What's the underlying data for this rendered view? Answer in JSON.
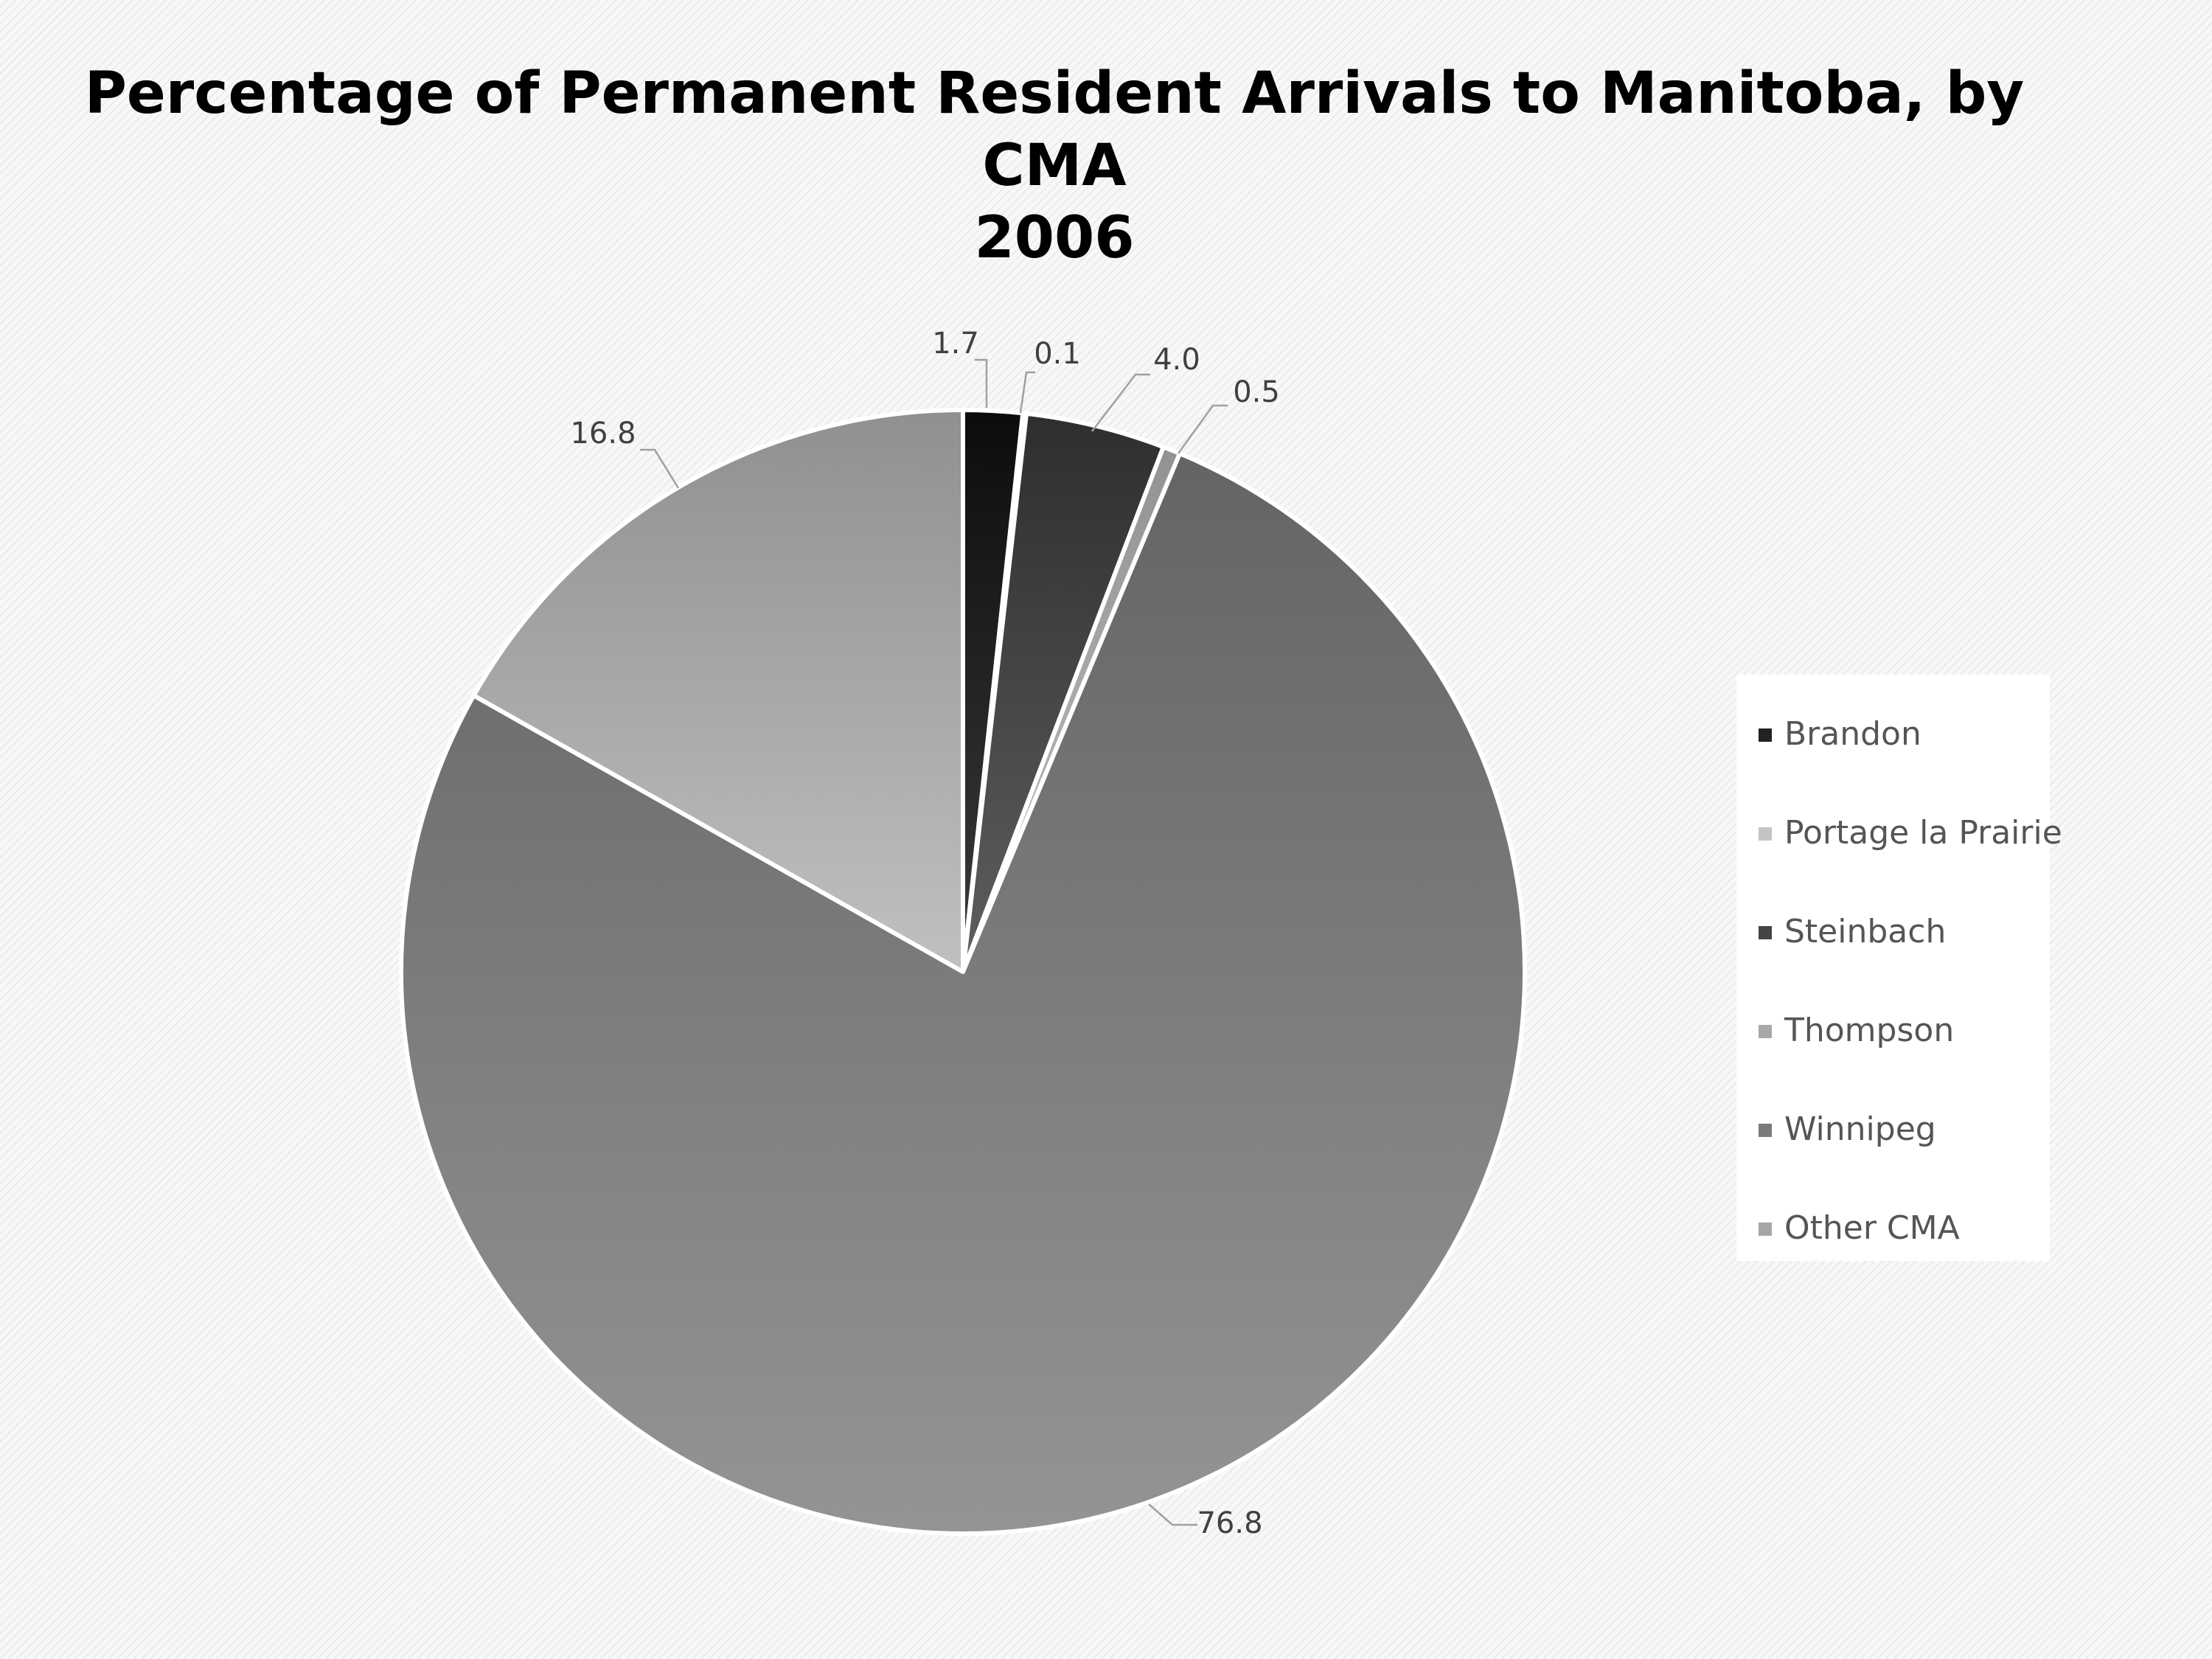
{
  "chart_data": {
    "type": "pie",
    "title": "Percentage of Permanent Resident Arrivals to Manitoba, by CMA 2006",
    "title_lines": [
      "Percentage of Permanent Resident Arrivals to Manitoba, by",
      "CMA",
      "2006"
    ],
    "categories": [
      "Brandon",
      "Portage la Prairie",
      "Steinbach",
      "Thompson",
      "Winnipeg",
      "Other CMA"
    ],
    "values": [
      1.7,
      0.1,
      4.0,
      0.5,
      76.8,
      16.8
    ],
    "value_labels": [
      "1.7",
      "0.1",
      "4.0",
      "0.5",
      "76.8",
      "16.8"
    ],
    "colors": [
      "#222222",
      "#c4c4c4",
      "#444444",
      "#a8a8a8",
      "#7a7a7a",
      "#a6a6a6"
    ],
    "legend_position": "right",
    "start_angle_deg": 0,
    "direction": "clockwise"
  }
}
